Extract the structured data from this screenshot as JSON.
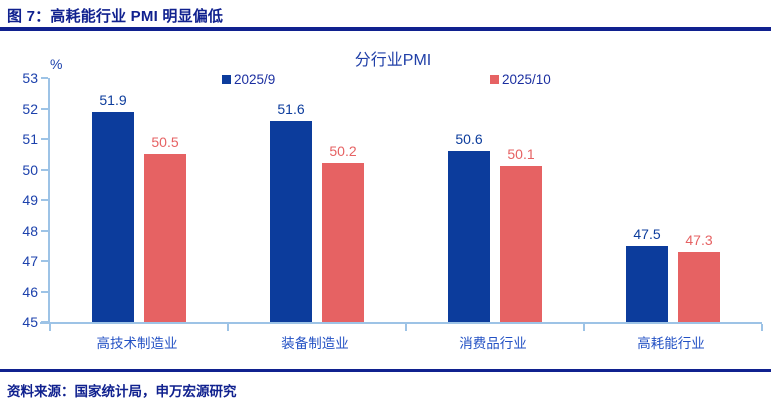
{
  "header": {
    "title": "图 7：高耗能行业 PMI 明显偏低"
  },
  "chart_data": {
    "type": "bar",
    "title": "分行业PMI",
    "unit_label": "%",
    "categories": [
      "高技术制造业",
      "装备制造业",
      "消费品行业",
      "高耗能行业"
    ],
    "series": [
      {
        "name": "2025/9",
        "color": "#0C3C9C",
        "values": [
          51.9,
          51.6,
          50.6,
          47.5
        ]
      },
      {
        "name": "2025/10",
        "color": "#E66263",
        "values": [
          50.5,
          50.2,
          50.1,
          47.3
        ]
      }
    ],
    "ylim": [
      45,
      53
    ],
    "ytick_step": 1,
    "grid": false,
    "legend_position": "top",
    "value_labels": true
  },
  "footer": {
    "source": "资料来源：国家统计局，申万宏源研究"
  },
  "colors": {
    "title_navy": "#10218F",
    "axis_light_blue": "#9DC3E6",
    "tick_label_blue": "#1C41AC",
    "category_label_blue": "#2351C4",
    "legend_text_blue": "#1B2FA0",
    "chart_title_blue": "#2140A8",
    "series_blue": "#0C3C9C",
    "series_red": "#E66263"
  }
}
